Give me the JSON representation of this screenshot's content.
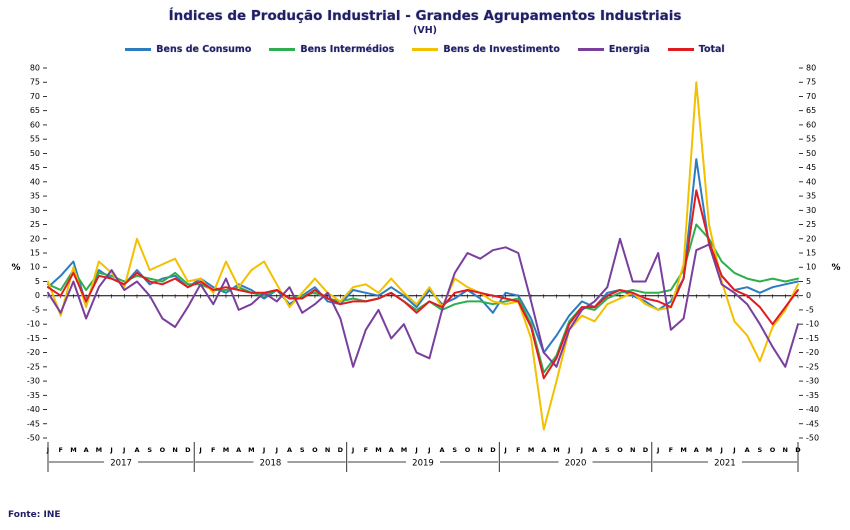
{
  "chart_data": {
    "type": "line",
    "title": "Índices de Produção Industrial - Grandes Agrupamentos Industriais",
    "subtitle": "(VH)",
    "source": "Fonte: INE",
    "unit_left": "%",
    "unit_right": "%",
    "ylim": [
      -50,
      80
    ],
    "ytick_step": 5,
    "grid": false,
    "legend_position": "top",
    "years": [
      "2017",
      "2018",
      "2019",
      "2020",
      "2021"
    ],
    "month_labels": [
      "J",
      "F",
      "M",
      "A",
      "M",
      "J",
      "J",
      "A",
      "S",
      "O",
      "N",
      "D"
    ],
    "series": [
      {
        "name": "Bens de Consumo",
        "color": "#2d7cc0",
        "values": [
          3,
          7,
          12,
          -3,
          9,
          6,
          4,
          9,
          4,
          6,
          7,
          3,
          6,
          3,
          1,
          4,
          2,
          -1,
          2,
          -3,
          0,
          3,
          -2,
          -3,
          2,
          1,
          0,
          3,
          0,
          -4,
          2,
          -3,
          -1,
          2,
          -1,
          -6,
          1,
          0,
          -8,
          -20,
          -14,
          -7,
          -2,
          -4,
          1,
          2,
          0,
          -2,
          -5,
          -2,
          6,
          48,
          18,
          7,
          2,
          3,
          1,
          3,
          4,
          5
        ]
      },
      {
        "name": "Bens Intermédios",
        "color": "#2eae4e",
        "values": [
          4,
          2,
          9,
          2,
          8,
          7,
          5,
          7,
          6,
          5,
          8,
          4,
          4,
          2,
          2,
          3,
          1,
          0,
          2,
          -1,
          0,
          1,
          -1,
          -2,
          -1,
          -2,
          -1,
          1,
          -2,
          -5,
          -2,
          -5,
          -3,
          -2,
          -2,
          -3,
          -2,
          -1,
          -10,
          -27,
          -21,
          -9,
          -4,
          -5,
          -1,
          1,
          2,
          1,
          1,
          2,
          9,
          25,
          20,
          12,
          8,
          6,
          5,
          6,
          5,
          6
        ]
      },
      {
        "name": "Bens de Investimento",
        "color": "#f3c000",
        "values": [
          5,
          -7,
          10,
          -4,
          12,
          8,
          3,
          20,
          9,
          11,
          13,
          5,
          6,
          1,
          12,
          3,
          9,
          12,
          4,
          -4,
          1,
          6,
          1,
          -2,
          3,
          4,
          1,
          6,
          1,
          -3,
          3,
          -4,
          6,
          3,
          1,
          -2,
          -3,
          -2,
          -15,
          -47,
          -30,
          -12,
          -7,
          -9,
          -3,
          -1,
          1,
          -3,
          -5,
          -4,
          11,
          75,
          25,
          5,
          -9,
          -14,
          -23,
          -11,
          -5,
          4
        ]
      },
      {
        "name": "Energia",
        "color": "#7a3f9d",
        "values": [
          1,
          -6,
          5,
          -8,
          3,
          9,
          2,
          5,
          0,
          -8,
          -11,
          -4,
          4,
          -3,
          6,
          -5,
          -3,
          1,
          -2,
          3,
          -6,
          -3,
          1,
          -8,
          -25,
          -12,
          -5,
          -15,
          -10,
          -20,
          -22,
          -5,
          8,
          15,
          13,
          16,
          17,
          15,
          -2,
          -20,
          -25,
          -12,
          -5,
          -2,
          3,
          20,
          5,
          5,
          15,
          -12,
          -8,
          16,
          18,
          4,
          1,
          -3,
          -10,
          -18,
          -25,
          -10
        ]
      },
      {
        "name": "Total",
        "color": "#e11b22",
        "values": [
          3,
          0,
          8,
          -2,
          7,
          6,
          4,
          8,
          5,
          4,
          6,
          3,
          5,
          2,
          3,
          2,
          1,
          1,
          2,
          -1,
          -1,
          2,
          -1,
          -3,
          -2,
          -2,
          -1,
          1,
          -2,
          -6,
          -2,
          -4,
          1,
          2,
          1,
          0,
          -1,
          -2,
          -11,
          -29,
          -22,
          -10,
          -4,
          -4,
          0,
          2,
          1,
          -1,
          -2,
          -4,
          6,
          37,
          19,
          7,
          2,
          0,
          -4,
          -10,
          -4,
          2
        ]
      }
    ]
  }
}
